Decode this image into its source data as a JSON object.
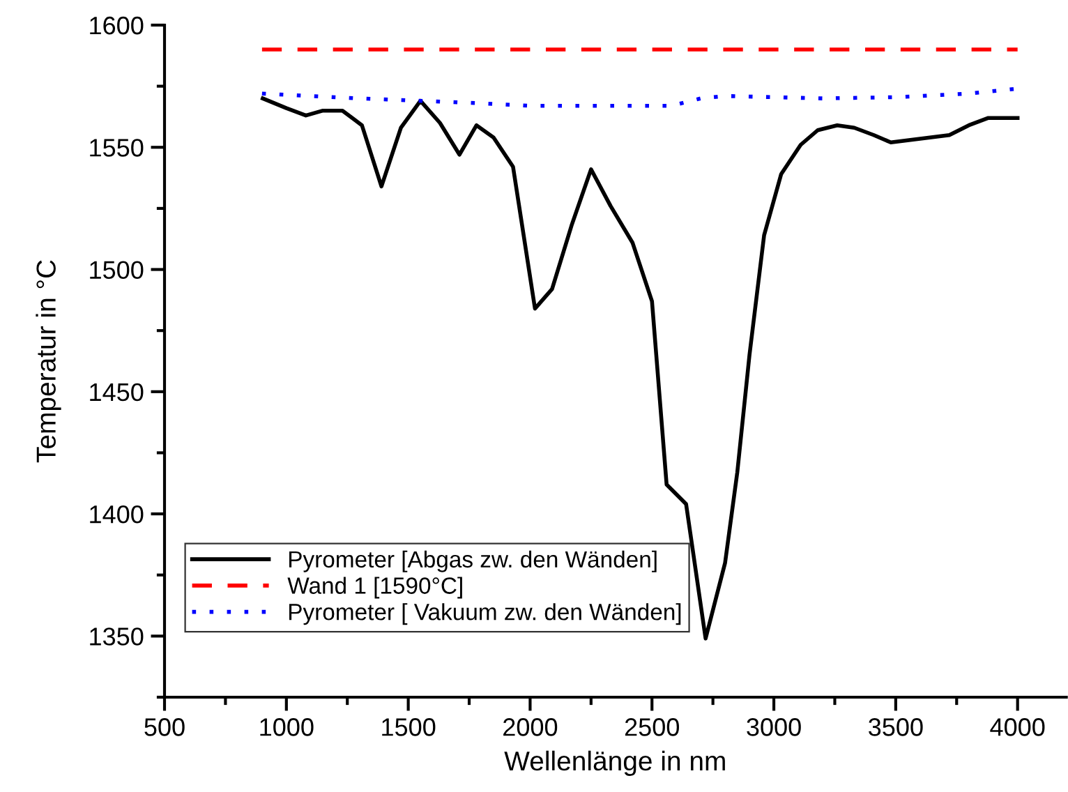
{
  "chart_data": {
    "type": "line",
    "xlabel": "Wellenlänge in nm",
    "ylabel": "Temperatur in °C",
    "xlim": [
      500,
      4200
    ],
    "xticks": [
      500,
      1000,
      1500,
      2000,
      2500,
      3000,
      3500,
      4000
    ],
    "ylim": [
      1325,
      1600
    ],
    "yticks": [
      1350,
      1400,
      1450,
      1500,
      1550,
      1600
    ],
    "grid": false,
    "legend": "bottom left",
    "series": [
      {
        "name": "Pyrometer [Abgas zw. den Wänden]",
        "color": "#000000",
        "line_style": "solid",
        "x": [
          903,
          1000,
          1080,
          1150,
          1230,
          1310,
          1390,
          1470,
          1550,
          1630,
          1710,
          1780,
          1850,
          1930,
          2020,
          2090,
          2170,
          2250,
          2330,
          2420,
          2500,
          2560,
          2640,
          2720,
          2800,
          2850,
          2900,
          2960,
          3030,
          3110,
          3180,
          3260,
          3330,
          3410,
          3480,
          3560,
          3640,
          3720,
          3800,
          3880,
          3960,
          4000
        ],
        "values": [
          1570,
          1566,
          1563,
          1565,
          1565,
          1559,
          1534,
          1558,
          1569,
          1560,
          1547,
          1559,
          1554,
          1542,
          1484,
          1492,
          1518,
          1541,
          1526,
          1511,
          1487,
          1412,
          1404,
          1349,
          1380,
          1417,
          1465,
          1514,
          1539,
          1551,
          1557,
          1559,
          1558,
          1555,
          1552,
          1553,
          1554,
          1555,
          1559,
          1562,
          1562,
          1562
        ]
      },
      {
        "name": "Wand 1 [1590°C]",
        "color": "#ff0000",
        "line_style": "dashed",
        "x": [
          900,
          4000
        ],
        "values": [
          1590,
          1590
        ]
      },
      {
        "name": "Pyrometer [ Vakuum zw. den Wänden]",
        "color": "#0000ff",
        "line_style": "dotted",
        "x": [
          900,
          1300,
          1800,
          2000,
          2580,
          2700,
          2800,
          3200,
          3500,
          3800,
          4000
        ],
        "values": [
          1572,
          1570,
          1568,
          1567,
          1567,
          1570,
          1571,
          1570,
          1570.5,
          1572,
          1574
        ]
      }
    ]
  }
}
